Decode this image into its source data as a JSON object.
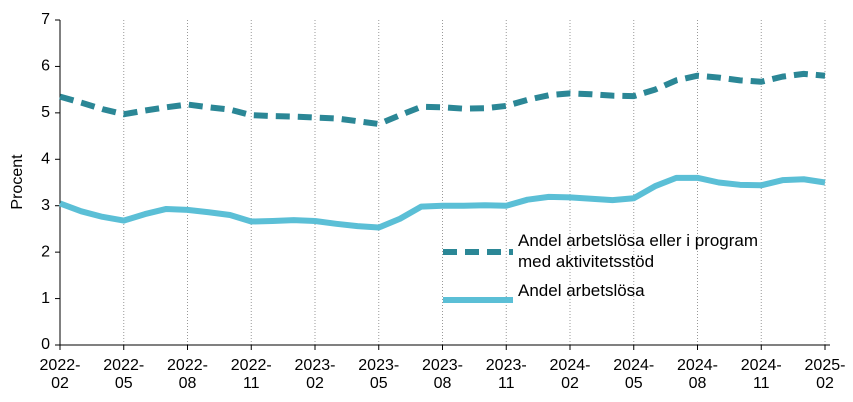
{
  "chart_data": {
    "type": "line",
    "y_label": "Procent",
    "categories": [
      "2022-\n02",
      null,
      null,
      "2022-\n05",
      null,
      null,
      "2022-\n08",
      null,
      null,
      "2022-\n11",
      null,
      null,
      "2023-\n02",
      null,
      null,
      "2023-\n05",
      null,
      null,
      "2023-\n08",
      null,
      null,
      "2023-\n11",
      null,
      null,
      "2024-\n02",
      null,
      null,
      "2024-\n05",
      null,
      null,
      "2024-\n08",
      null,
      null,
      "2024-\n11",
      null,
      null,
      "2025-\n02"
    ],
    "series": [
      {
        "name": "Andel arbetslösa eller i program med aktivitetsstöd",
        "color": "#2b8796",
        "style": "dashed",
        "values": [
          5.35,
          5.22,
          5.08,
          4.97,
          5.05,
          5.12,
          5.18,
          5.12,
          5.07,
          4.95,
          4.93,
          4.92,
          4.9,
          4.88,
          4.82,
          4.76,
          4.95,
          5.13,
          5.12,
          5.09,
          5.1,
          5.15,
          5.28,
          5.38,
          5.42,
          5.4,
          5.37,
          5.36,
          5.5,
          5.7,
          5.8,
          5.76,
          5.7,
          5.67,
          5.78,
          5.84,
          5.8
        ]
      },
      {
        "name": "Andel arbetslösa",
        "color": "#5bbfd6",
        "style": "solid",
        "values": [
          3.05,
          2.88,
          2.76,
          2.68,
          2.82,
          2.93,
          2.91,
          2.86,
          2.8,
          2.66,
          2.67,
          2.69,
          2.67,
          2.61,
          2.56,
          2.53,
          2.72,
          2.98,
          3.0,
          3.0,
          3.01,
          3.0,
          3.13,
          3.19,
          3.18,
          3.15,
          3.12,
          3.16,
          3.42,
          3.6,
          3.6,
          3.5,
          3.45,
          3.44,
          3.55,
          3.57,
          3.5
        ]
      }
    ],
    "ylim": [
      0,
      7
    ],
    "yticks": [
      0,
      1,
      2,
      3,
      4,
      5,
      6,
      7
    ],
    "grid": true
  }
}
